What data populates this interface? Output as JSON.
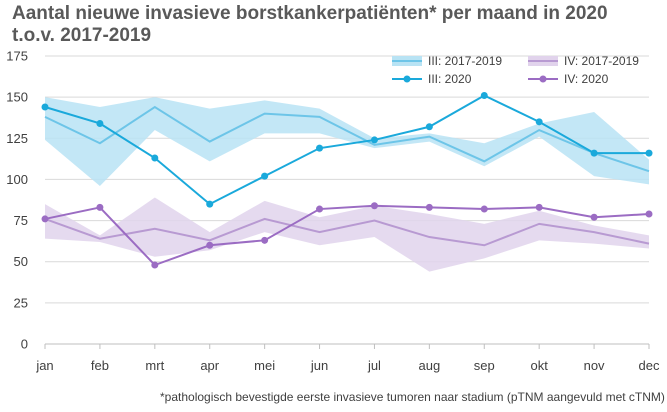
{
  "chart_data": {
    "type": "line",
    "title_line1": "Aantal nieuwe invasieve borstkankerpatiënten* per maand in 2020",
    "title_line2": "t.o.v. 2017-2019",
    "footnote": "*pathologisch bevestigde eerste invasieve tumoren naar stadium (pTNM aangevuld met cTNM)",
    "categories": [
      "jan",
      "feb",
      "mrt",
      "apr",
      "mei",
      "jun",
      "jul",
      "aug",
      "sep",
      "okt",
      "nov",
      "dec"
    ],
    "ylim": [
      0,
      175
    ],
    "yticks": [
      0,
      25,
      50,
      75,
      100,
      125,
      150,
      175
    ],
    "legend_position": "top-right",
    "grid": "horizontal",
    "series": [
      {
        "name": "III: 2017-2019",
        "kind": "band",
        "color": "#6dc5e8",
        "fill": "#b8e3f4",
        "low": [
          124,
          96,
          130,
          111,
          128,
          128,
          119,
          123,
          108,
          126,
          102,
          97
        ],
        "high": [
          150,
          144,
          150,
          143,
          148,
          143,
          125,
          128,
          122,
          134,
          141,
          112
        ],
        "mean": [
          138,
          122,
          144,
          123,
          140,
          138,
          121,
          126,
          111,
          130,
          116,
          105
        ]
      },
      {
        "name": "IV: 2017-2019",
        "kind": "band",
        "color": "#b89ad2",
        "fill": "#e1d3ec",
        "low": [
          64,
          62,
          53,
          57,
          68,
          60,
          65,
          44,
          52,
          63,
          61,
          58
        ],
        "high": [
          85,
          66,
          89,
          68,
          87,
          77,
          84,
          79,
          73,
          81,
          72,
          66
        ],
        "mean": [
          76,
          64,
          70,
          63,
          76,
          68,
          75,
          65,
          60,
          73,
          68,
          61
        ]
      },
      {
        "name": "III: 2020",
        "kind": "line",
        "color": "#1aa9db",
        "values": [
          144,
          134,
          113,
          85,
          102,
          119,
          124,
          132,
          151,
          135,
          116,
          116
        ]
      },
      {
        "name": "IV: 2020",
        "kind": "line",
        "color": "#9b6cc3",
        "values": [
          76,
          83,
          48,
          60,
          63,
          82,
          84,
          83,
          82,
          83,
          77,
          79
        ]
      }
    ]
  }
}
